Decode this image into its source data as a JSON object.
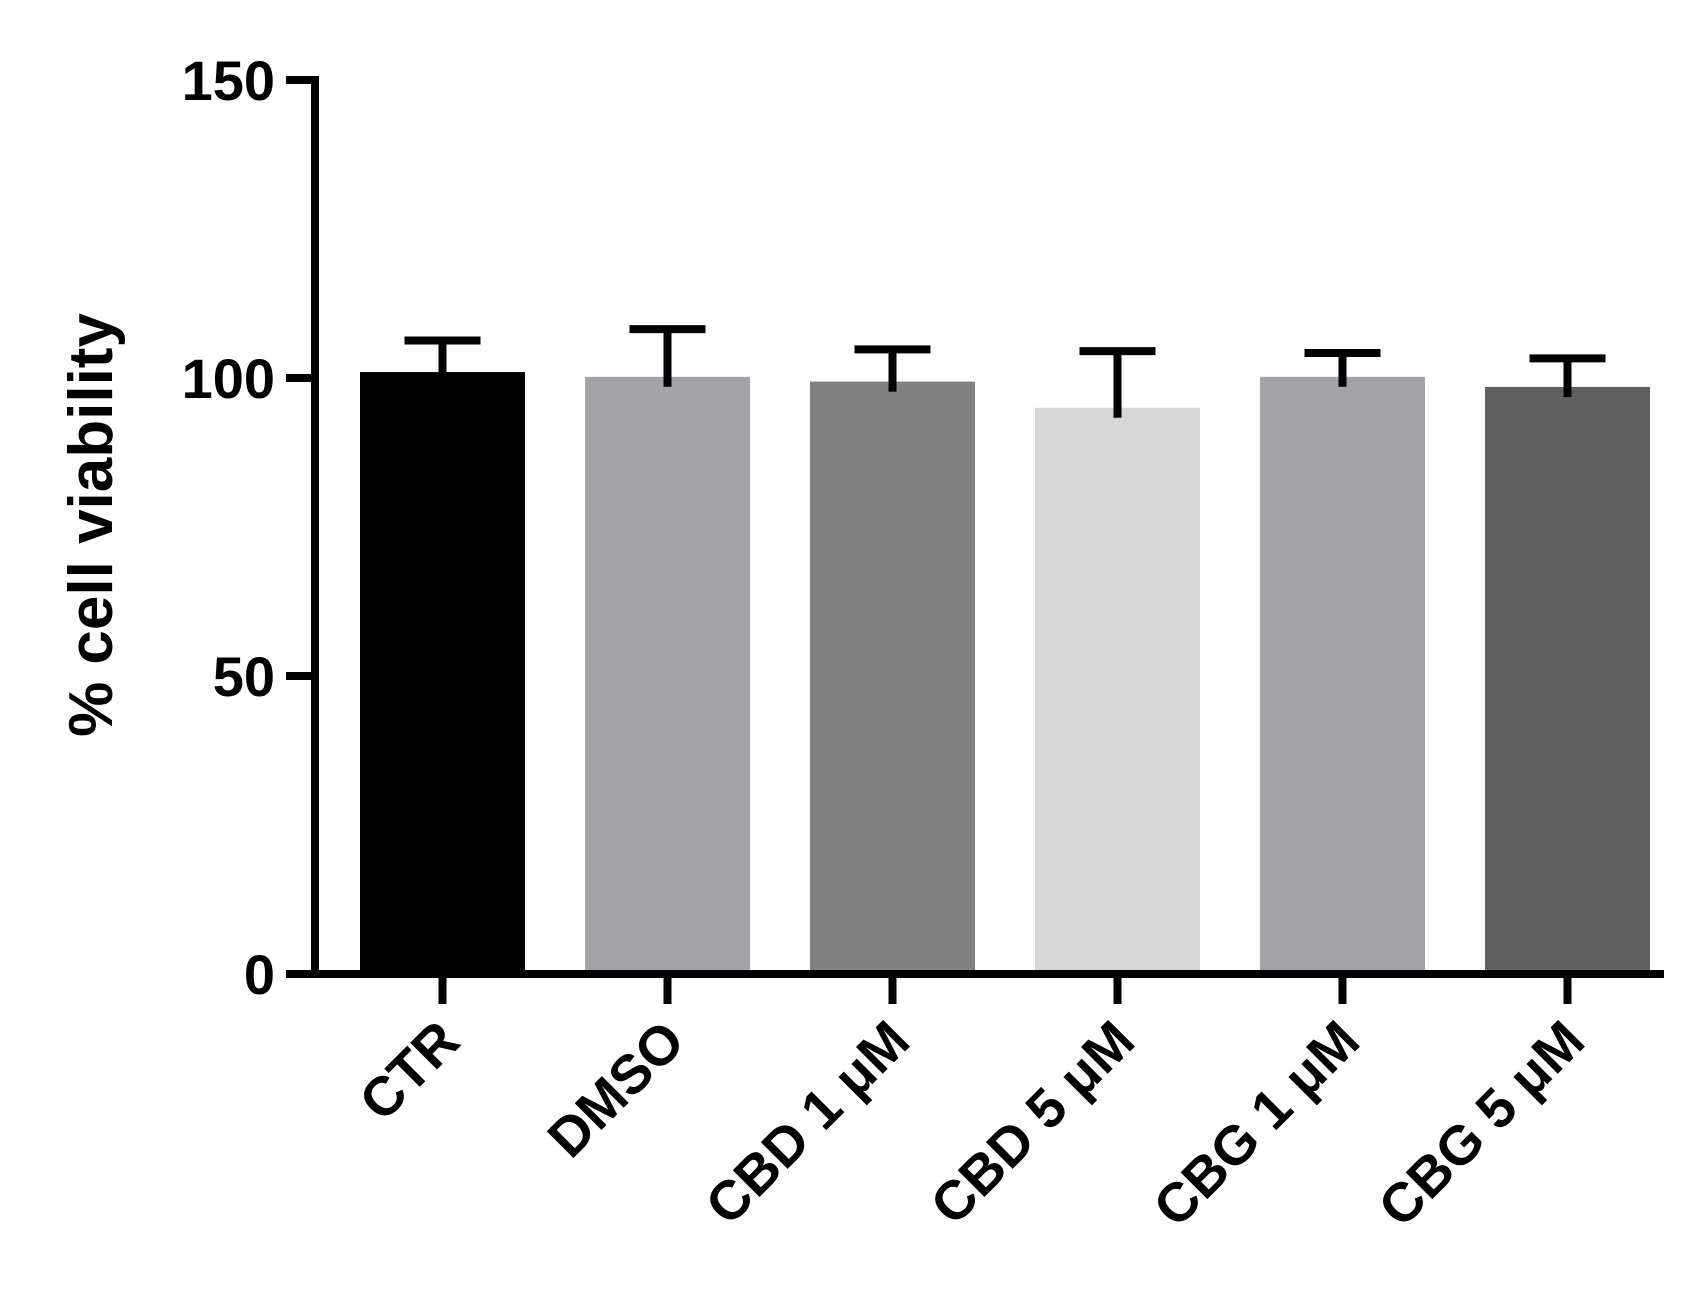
{
  "chart_data": {
    "type": "bar",
    "title": "",
    "xlabel": "",
    "ylabel": "% cell viability",
    "ylim": [
      0,
      150
    ],
    "yticks": [
      0,
      50,
      100,
      150
    ],
    "ytick_labels": [
      "0",
      "50",
      "100",
      "150"
    ],
    "categories": [
      "CTR",
      "DMSO",
      "CBD 1 μM",
      "CBD 5 μM",
      "CBG 1 μM",
      "CBG 5 μM"
    ],
    "values": [
      101,
      100.2,
      99.4,
      95,
      100.2,
      98.5
    ],
    "error_upper": [
      5.3,
      8,
      5.4,
      9.5,
      4,
      4.8
    ],
    "colors": [
      "#000000",
      "#a3a4a8",
      "#828282",
      "#d7d7d7",
      "#a3a4a8",
      "#606060"
    ],
    "grid": false,
    "legend": "none"
  }
}
